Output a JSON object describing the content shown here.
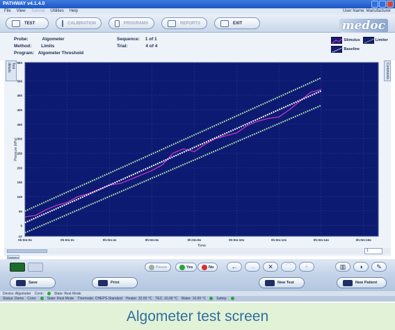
{
  "app": {
    "title": "PATHWAY v4.1.4.0",
    "user_label": "User Name: Manufacturer"
  },
  "menu": [
    "File",
    "View",
    "Tutorial",
    "Utilities",
    "Help"
  ],
  "toolbar": {
    "test": "TEST",
    "tab2": "CALIBRATION",
    "tab3": "PROGRAMS",
    "tab4": "REPORTS",
    "exit": "EXIT",
    "logo": "medoc"
  },
  "info": {
    "probe_label": "Probe:",
    "probe_value": "Algometer",
    "method_label": "Method:",
    "method_value": "Limits",
    "program_label": "Program:",
    "program_value": "Algometer Threshold",
    "sequence_label": "Sequence:",
    "sequence_value": "1 of 1",
    "trial_label": "Trial:",
    "trial_value": "4 of 4"
  },
  "legend": {
    "stimulus": "Stimulus",
    "limiter": "Limiter",
    "baseline": "Baseline"
  },
  "side_tabs": {
    "left": "Test details",
    "right": "Comments"
  },
  "chart_data": {
    "type": "line",
    "xlabel": "Time",
    "ylabel": "Pressure (kPa)",
    "xticks": [
      "0h:0m:0s",
      "0h:0m:2s",
      "0h:0m:4s",
      "0h:0m:6s",
      "0h:0m:8s",
      "0h:0m:10s",
      "0h:0m:12s",
      "0h:0m:14s",
      "0h:0m:16s"
    ],
    "yticks": [
      -37,
      0,
      50,
      100,
      150,
      200,
      250,
      300,
      350,
      400,
      450,
      500,
      563
    ],
    "ylim": [
      -37,
      563
    ],
    "xlim": [
      0,
      16.7
    ],
    "grid": true,
    "series": [
      {
        "name": "Stimulus",
        "color": "#cc33cc",
        "x": [
          0,
          0.5,
          1.0,
          1.5,
          2.0,
          2.5,
          3.0,
          3.5,
          4.0,
          4.5,
          5.0,
          5.5,
          6.0,
          6.5,
          7.0,
          7.5,
          8.0,
          8.5,
          9.0,
          9.5,
          10.0,
          10.5,
          11.0,
          11.5,
          12.0,
          12.5,
          13.0,
          13.5,
          14.0
        ],
        "y": [
          30,
          35,
          55,
          70,
          80,
          100,
          110,
          125,
          140,
          145,
          160,
          175,
          190,
          210,
          250,
          265,
          255,
          280,
          300,
          310,
          320,
          345,
          360,
          370,
          375,
          400,
          430,
          460,
          470
        ]
      },
      {
        "name": "Limiter",
        "color": "#a8d8a8",
        "x": [
          0,
          14
        ],
        "y": [
          50,
          510
        ]
      },
      {
        "name": "Limiter",
        "color": "#a8d8a8",
        "x": [
          0,
          14
        ],
        "y": [
          -25,
          415
        ]
      },
      {
        "name": "Baseline",
        "color": "#ffffff",
        "x": [
          0,
          14
        ],
        "y": [
          10,
          465
        ]
      }
    ]
  },
  "zoom_value": "1",
  "statistics_tab": "Statistics",
  "controls": {
    "pause": "Pause",
    "yes": "Yes",
    "no": "No"
  },
  "actions": {
    "save": "Save",
    "print": "Print",
    "new_test": "New Test",
    "new_patient": "New Patient"
  },
  "status1": {
    "device": "Device: Algometer",
    "conn": "Conn:",
    "state": "State: Rest Mode"
  },
  "status2": {
    "status": "Status: Demo",
    "conn": "Conn:",
    "state": "State: Rest Mode",
    "thermode": "Thermode: CHEPS-Standard",
    "heater": "Heater: 32.00 °C",
    "tec": "TEC: 10.00 °C",
    "water": "Water: 10.00 °C",
    "safety": "Safety:"
  },
  "caption": "Algometer test screen"
}
